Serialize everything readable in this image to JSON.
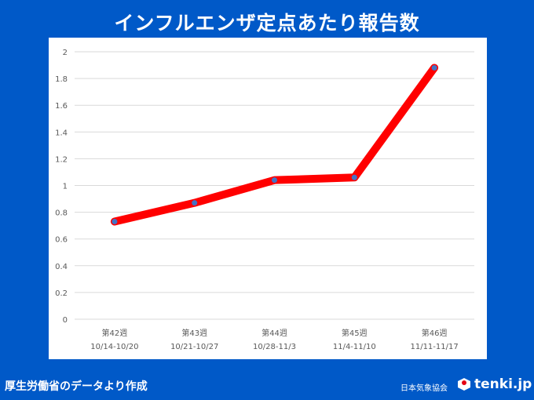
{
  "title": "インフルエンザ定点あたり報告数",
  "footer": {
    "source": "厚生労働省のデータより作成",
    "org": "日本気象協会",
    "logo": "tenki.jp"
  },
  "colors": {
    "background": "#0059c8",
    "line": "#ff0000",
    "marker": "#4472c4"
  },
  "chart_data": {
    "type": "line",
    "title": "インフルエンザ定点あたり報告数",
    "categories": [
      [
        "第42週",
        "10/14-10/20"
      ],
      [
        "第43週",
        "10/21-10/27"
      ],
      [
        "第44週",
        "10/28-11/3"
      ],
      [
        "第45週",
        "11/4-11/10"
      ],
      [
        "第46週",
        "11/11-11/17"
      ]
    ],
    "values": [
      0.73,
      0.87,
      1.04,
      1.06,
      1.88
    ],
    "ylim": [
      0,
      2
    ],
    "yticks": [
      "0",
      "0.2",
      "0.4",
      "0.6",
      "0.8",
      "1",
      "1.2",
      "1.4",
      "1.6",
      "1.8",
      "2"
    ],
    "grid": true,
    "legend": "none"
  }
}
